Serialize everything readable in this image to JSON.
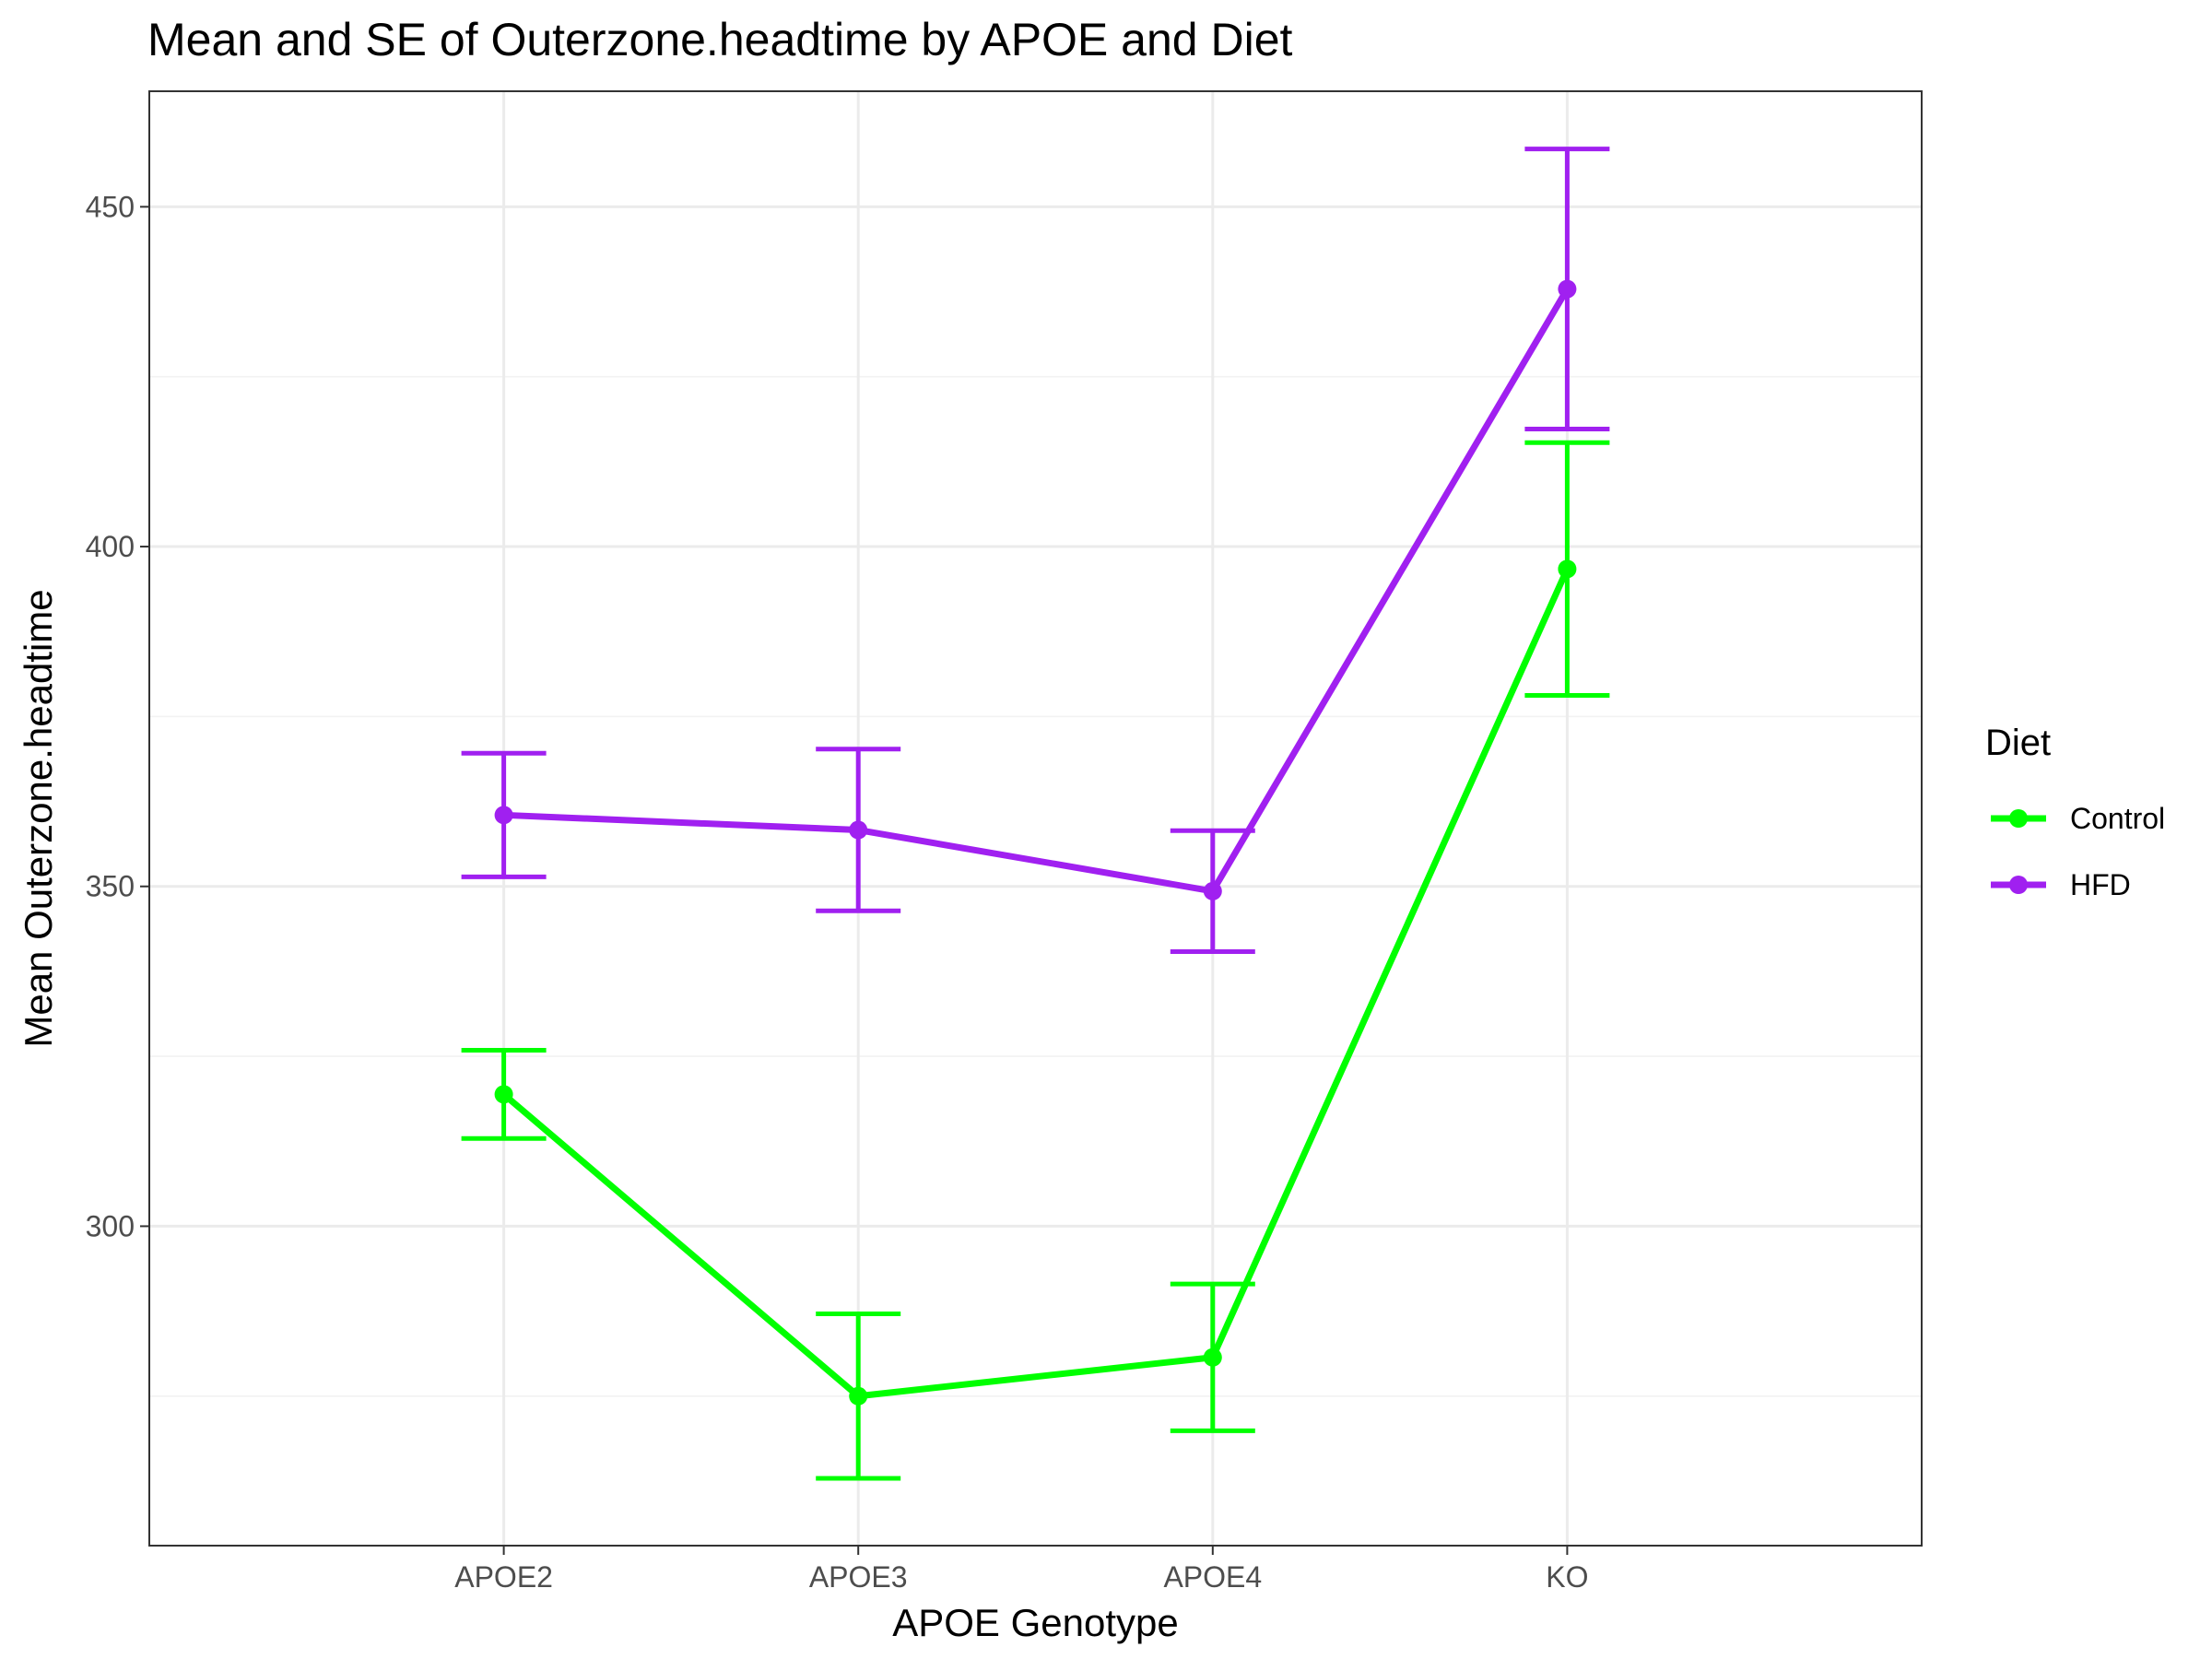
{
  "chart_data": {
    "type": "line",
    "title": "Mean and SE of Outerzone.headtime by APOE and Diet",
    "xlabel": "APOE Genotype",
    "ylabel": "Mean Outerzone.headtime",
    "categories": [
      "APOE2",
      "APOE3",
      "APOE4",
      "KO"
    ],
    "ylim": [
      253,
      467
    ],
    "yticks": [
      300,
      350,
      400,
      450
    ],
    "y_minor_ticks": [
      275,
      325,
      375,
      425
    ],
    "grid": true,
    "legend": {
      "title": "Diet",
      "position": "right"
    },
    "series": [
      {
        "name": "Control",
        "color": "#00ff00",
        "values": [
          319.4,
          275.0,
          280.7,
          396.7
        ],
        "se_lower": [
          312.9,
          262.9,
          269.9,
          378.1
        ],
        "se_upper": [
          325.9,
          287.1,
          291.5,
          415.3
        ]
      },
      {
        "name": "HFD",
        "color": "#a020f0",
        "values": [
          360.5,
          358.3,
          349.3,
          437.9
        ],
        "se_lower": [
          351.4,
          346.4,
          340.4,
          417.3
        ],
        "se_upper": [
          369.6,
          370.2,
          358.2,
          458.5
        ]
      }
    ]
  }
}
